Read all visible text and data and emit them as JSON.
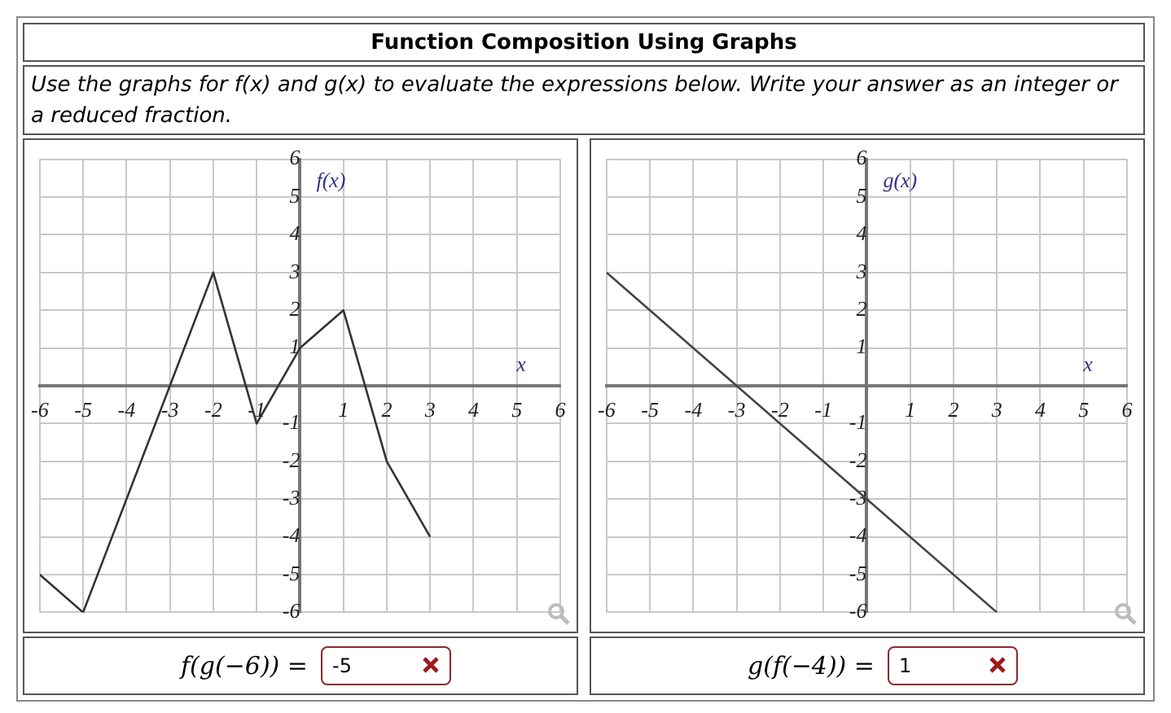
{
  "chart_data": [
    {
      "type": "line",
      "title": "Function Composition Using Graphs",
      "subtitle": "Use the graphs for f(x) and g(x) to evaluate the expressions below. Write your answer as an integer or a reduced fraction.",
      "xlabel": "x",
      "ylabel": "f(x)",
      "series": [
        {
          "color": "#333333",
          "x": [
            -6,
            -5,
            -2,
            -1,
            0,
            1,
            2,
            3
          ],
          "values": [
            -5,
            -6,
            3,
            -1,
            1,
            2,
            -2,
            -4
          ]
        }
      ],
      "xlim": [
        -6,
        6
      ],
      "ylim": [
        -6,
        6
      ],
      "xticks": [
        -6,
        -5,
        -4,
        -3,
        -2,
        -1,
        1,
        2,
        3,
        4,
        5,
        6
      ],
      "yticks": [
        -6,
        -5,
        -4,
        -3,
        -2,
        -1,
        1,
        2,
        3,
        4,
        5,
        6
      ],
      "grid": true,
      "marker": "none",
      "line_style": "solid",
      "legend": false,
      "annotations": [
        "f(g(−6)) =",
        "-5"
      ]
    },
    {
      "type": "line",
      "xlabel": "x",
      "ylabel": "g(x)",
      "series": [
        {
          "color": "#444444",
          "x": [
            -6,
            3
          ],
          "values": [
            3,
            -6
          ]
        }
      ],
      "xlim": [
        -6,
        6
      ],
      "ylim": [
        -6,
        6
      ],
      "xticks": [
        -6,
        -5,
        -4,
        -3,
        -2,
        -1,
        1,
        2,
        3,
        4,
        5,
        6
      ],
      "yticks": [
        -6,
        -5,
        -4,
        -3,
        -2,
        -1,
        1,
        2,
        3,
        4,
        5,
        6
      ],
      "grid": true,
      "marker": "none",
      "line_style": "solid",
      "legend": false,
      "annotations": [
        "g(f(−4)) =",
        "1"
      ]
    }
  ]
}
